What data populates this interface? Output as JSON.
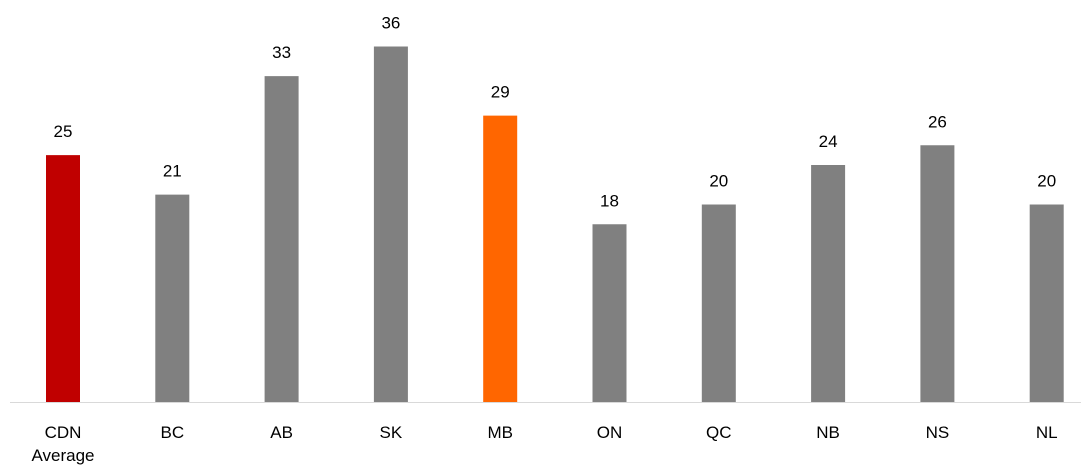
{
  "chart_data": {
    "type": "bar",
    "categories": [
      "CDN Average",
      "BC",
      "AB",
      "SK",
      "MB",
      "ON",
      "QC",
      "NB",
      "NS",
      "NL"
    ],
    "values": [
      25,
      21,
      33,
      36,
      29,
      18,
      20,
      24,
      26,
      20
    ],
    "colors": [
      "#c00000",
      "#808080",
      "#808080",
      "#808080",
      "#ff6600",
      "#808080",
      "#808080",
      "#808080",
      "#808080",
      "#808080"
    ],
    "ylim": [
      0,
      40
    ]
  }
}
